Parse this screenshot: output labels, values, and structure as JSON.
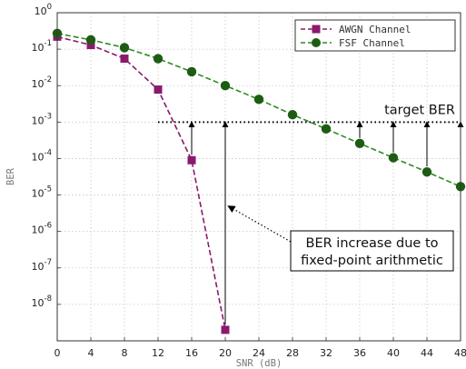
{
  "chart_data": {
    "type": "line",
    "xlabel": "SNR (dB)",
    "ylabel": "BER",
    "xlim": [
      0,
      48
    ],
    "ylim_log10": [
      -9,
      0
    ],
    "yscale": "log",
    "grid": "dotted",
    "legend_position": "top-right",
    "x_ticks": [
      "0",
      "4",
      "8",
      "12",
      "16",
      "20",
      "24",
      "28",
      "32",
      "36",
      "40",
      "44",
      "48"
    ],
    "y_ticks": [
      "10^0",
      "10^-1",
      "10^-2",
      "10^-3",
      "10^-4",
      "10^-5",
      "10^-6",
      "10^-7",
      "10^-8"
    ],
    "series": [
      {
        "name": "AWGN Channel",
        "color": "#8b1a6e",
        "marker": "square",
        "line": "dashed",
        "x": [
          0,
          4,
          8,
          12,
          16,
          20
        ],
        "y": [
          0.22,
          0.13,
          0.055,
          0.0078,
          9e-05,
          2e-09
        ]
      },
      {
        "name": "FSF Channel",
        "color": "#2f8a22",
        "marker": "circle",
        "line": "dashed",
        "x": [
          0,
          4,
          8,
          12,
          16,
          20,
          24,
          28,
          32,
          36,
          40,
          44,
          48
        ],
        "y": [
          0.27,
          0.18,
          0.11,
          0.055,
          0.024,
          0.01,
          0.0042,
          0.0016,
          0.00065,
          0.00026,
          0.000105,
          4.3e-05,
          1.7e-05
        ]
      }
    ],
    "target_line": {
      "y": 0.001,
      "x_from": 12,
      "x_to": 48,
      "label": "target BER"
    },
    "increase_arrows_x": [
      16,
      20,
      36,
      40,
      44,
      48
    ],
    "annotation": {
      "lines": [
        "BER increase due to",
        "fixed-point arithmetic"
      ],
      "points_to": {
        "x": 20,
        "y": 5e-06
      }
    }
  }
}
